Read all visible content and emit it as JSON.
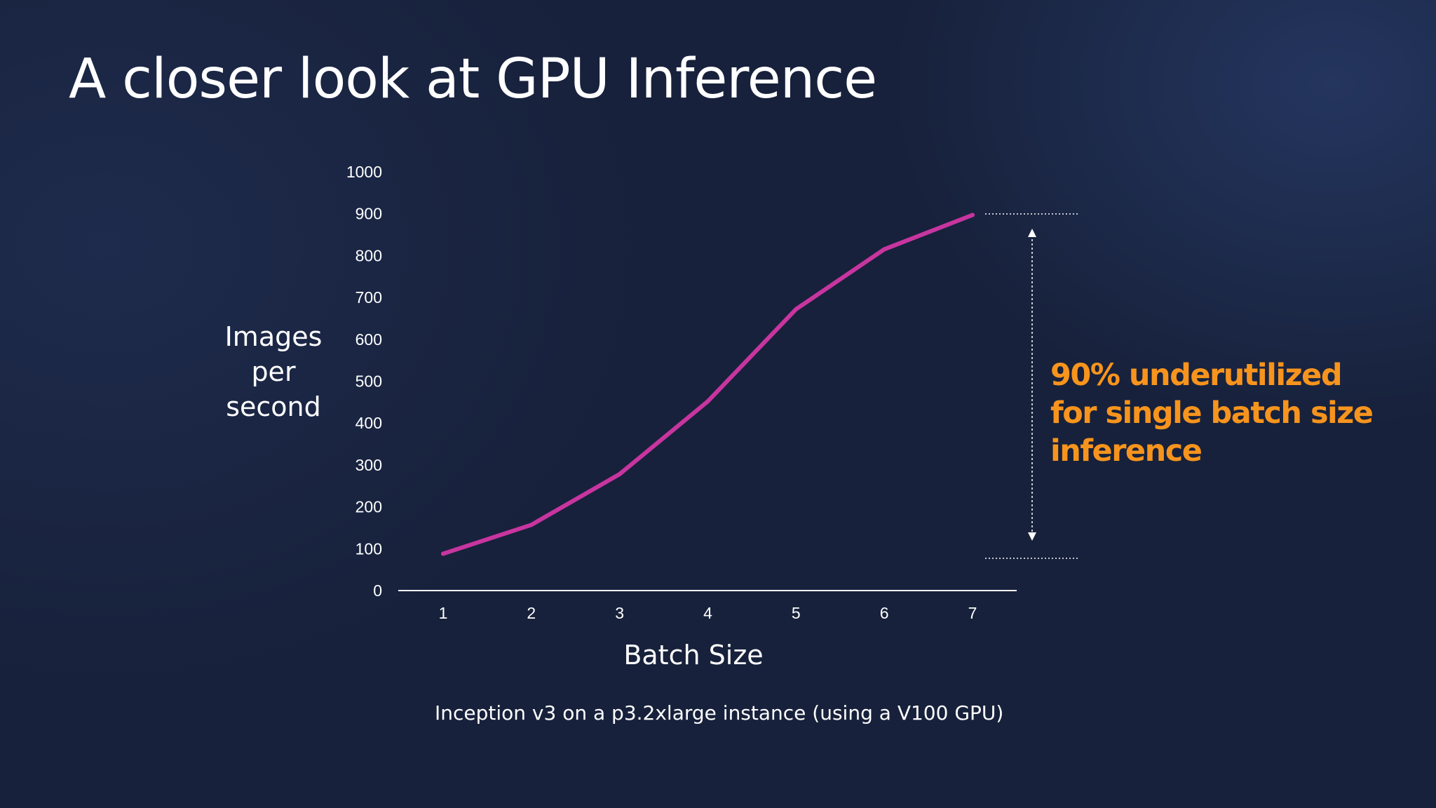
{
  "slide": {
    "title": "A closer look at GPU Inference",
    "footnote": "Inception v3  on a p3.2xlarge instance (using a V100 GPU)",
    "annotation_lines": [
      "90% underutilized",
      "for single batch size",
      "inference"
    ]
  },
  "colors": {
    "background": "#17213b",
    "line": "#c8359f",
    "annotation": "#f7941d",
    "text": "#ffffff"
  },
  "chart_data": {
    "type": "line",
    "title": "",
    "xlabel": "Batch Size",
    "ylabel_lines": [
      "Images",
      "per",
      "second"
    ],
    "x": [
      1,
      2,
      3,
      4,
      5,
      6,
      7
    ],
    "x_ticks": [
      "1",
      "2",
      "3",
      "4",
      "5",
      "6",
      "7"
    ],
    "y_ticks": [
      "0",
      "100",
      "200",
      "300",
      "400",
      "500",
      "600",
      "700",
      "800",
      "900",
      "1000"
    ],
    "ylim": [
      0,
      1000
    ],
    "series": [
      {
        "values": [
          88,
          157,
          278,
          452,
          672,
          815,
          897
        ]
      }
    ],
    "grid": false,
    "legend": "none"
  }
}
